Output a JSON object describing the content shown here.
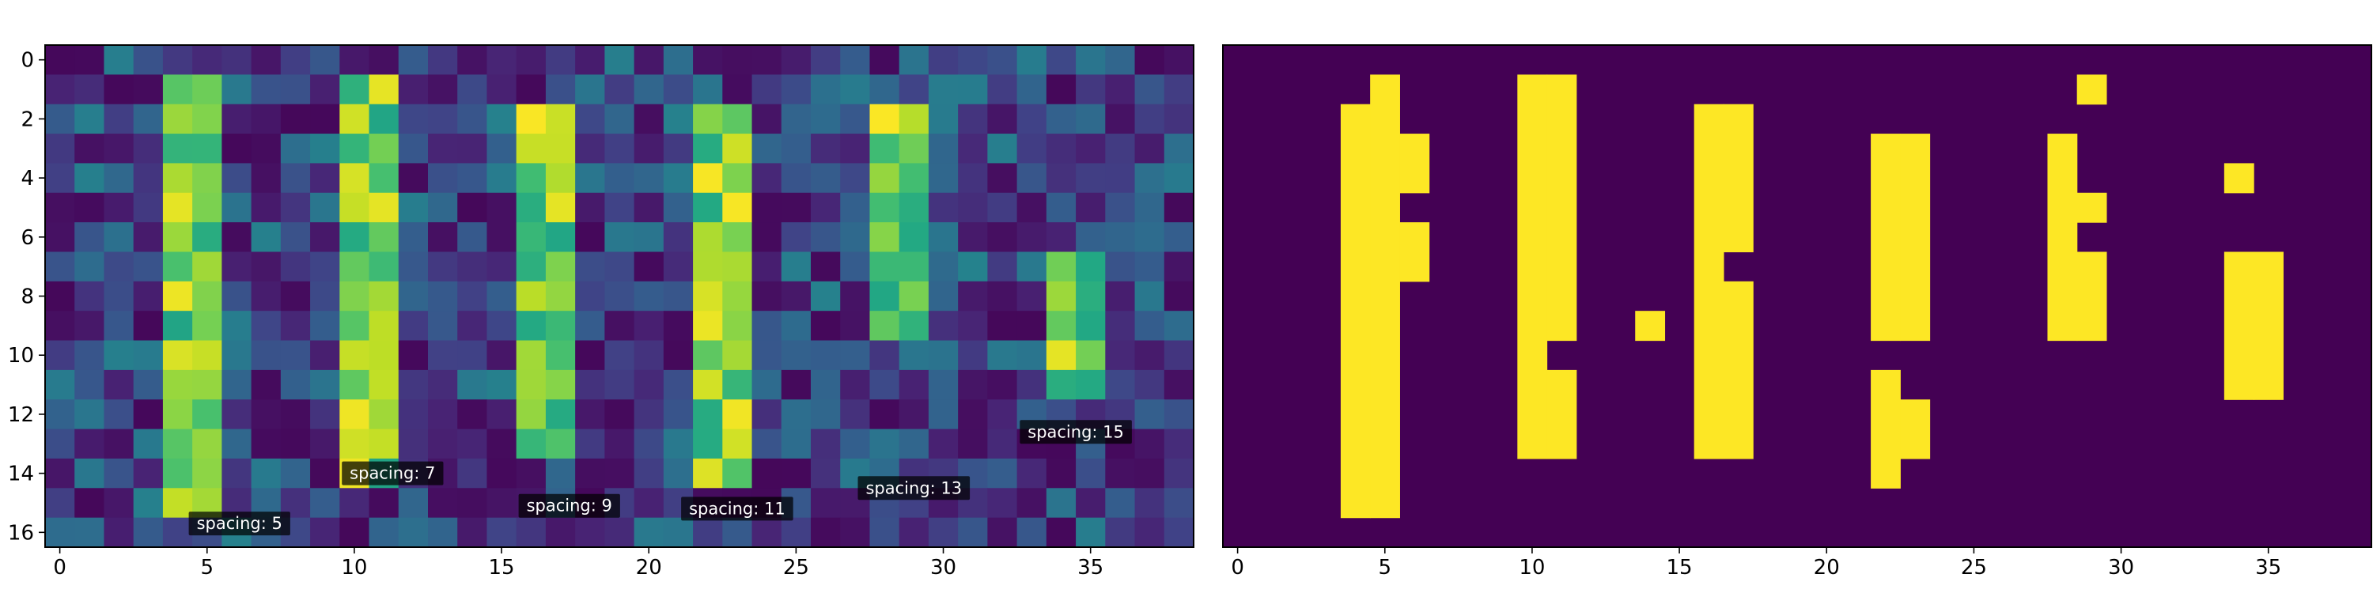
{
  "chart_data": [
    {
      "type": "heatmap",
      "colormap": "viridis",
      "grid": false,
      "dims": {
        "rows": 17,
        "cols": 39
      },
      "xticks": [
        0,
        5,
        10,
        15,
        20,
        25,
        30,
        35
      ],
      "yticks": [
        0,
        2,
        4,
        6,
        8,
        10,
        12,
        14,
        16
      ],
      "noise_seed": 7,
      "bands": [
        {
          "x": [
            4,
            5
          ],
          "y": [
            1,
            15
          ]
        },
        {
          "x": [
            10,
            11
          ],
          "y": [
            1,
            14
          ]
        },
        {
          "x": [
            16,
            17
          ],
          "y": [
            2,
            13
          ]
        },
        {
          "x": [
            22,
            23
          ],
          "y": [
            2,
            14
          ]
        },
        {
          "x": [
            28,
            29
          ],
          "y": [
            2,
            9
          ]
        },
        {
          "x": [
            34,
            35
          ],
          "y": [
            7,
            11
          ]
        }
      ],
      "annotations": [
        {
          "text": "spacing: 5",
          "x": 6.1,
          "y": 15.7
        },
        {
          "text": "spacing: 7",
          "x": 11.3,
          "y": 14.0
        },
        {
          "text": "spacing: 9",
          "x": 17.3,
          "y": 15.1
        },
        {
          "text": "spacing: 11",
          "x": 23.0,
          "y": 15.2
        },
        {
          "text": "spacing: 13",
          "x": 29.0,
          "y": 14.5
        },
        {
          "text": "spacing: 15",
          "x": 34.5,
          "y": 12.6
        }
      ]
    },
    {
      "type": "heatmap",
      "colormap": "binary viridis",
      "grid": false,
      "dims": {
        "rows": 17,
        "cols": 39
      },
      "xticks": [
        0,
        5,
        10,
        15,
        20,
        25,
        30,
        35
      ],
      "colors": {
        "off": "#440154",
        "on": "#fde725"
      },
      "on_cells": [
        {
          "x": 5,
          "y": [
            1,
            15
          ]
        },
        {
          "x": 4,
          "y": [
            2,
            15
          ]
        },
        {
          "x": 6,
          "y": [
            3,
            4
          ]
        },
        {
          "x": 6,
          "y": [
            6,
            7
          ]
        },
        {
          "x": 10,
          "y": [
            1,
            13
          ]
        },
        {
          "x": 11,
          "y": [
            1,
            9
          ]
        },
        {
          "x": 11,
          "y": [
            11,
            13
          ]
        },
        {
          "x": 14,
          "y": [
            9,
            9
          ]
        },
        {
          "x": 16,
          "y": [
            2,
            13
          ]
        },
        {
          "x": 17,
          "y": [
            2,
            6
          ]
        },
        {
          "x": 17,
          "y": [
            8,
            13
          ]
        },
        {
          "x": 22,
          "y": [
            3,
            9
          ]
        },
        {
          "x": 23,
          "y": [
            3,
            9
          ]
        },
        {
          "x": 22,
          "y": [
            11,
            14
          ]
        },
        {
          "x": 23,
          "y": [
            12,
            13
          ]
        },
        {
          "x": 28,
          "y": [
            3,
            9
          ]
        },
        {
          "x": 29,
          "y": [
            1,
            1
          ]
        },
        {
          "x": 29,
          "y": [
            5,
            5
          ]
        },
        {
          "x": 29,
          "y": [
            7,
            9
          ]
        },
        {
          "x": 34,
          "y": [
            4,
            4
          ]
        },
        {
          "x": 34,
          "y": [
            7,
            11
          ]
        },
        {
          "x": 35,
          "y": [
            7,
            11
          ]
        }
      ]
    }
  ]
}
